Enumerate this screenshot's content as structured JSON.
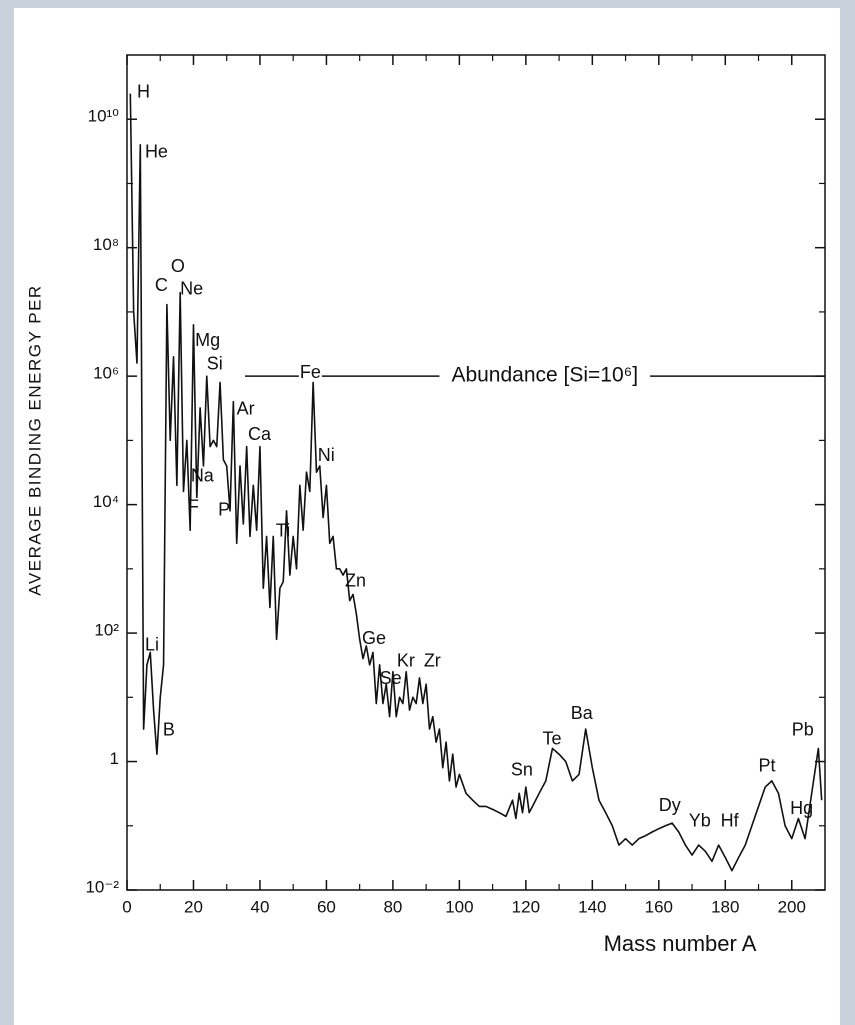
{
  "chart_data": {
    "type": "line",
    "ylabel": "AVERAGE BINDING ENERGY PER",
    "xlabel": "Mass number A",
    "ylog": true,
    "color": "#111111",
    "xlim": [
      0,
      210
    ],
    "ylim": [
      0.01,
      100000000000.0
    ],
    "xticks": [
      0,
      20,
      40,
      60,
      80,
      100,
      120,
      140,
      160,
      180,
      200
    ],
    "xticks_minor": [
      10,
      30,
      50,
      70,
      90,
      110,
      130,
      150,
      170,
      190
    ],
    "yticks": [
      {
        "value": 0.01,
        "label": "10⁻²"
      },
      1,
      {
        "value": 100,
        "label": "10²"
      },
      {
        "value": 10000,
        "label": "10⁴"
      },
      {
        "value": 1000000,
        "label": "10⁶"
      },
      {
        "value": 100000000,
        "label": "10⁸"
      },
      {
        "value": 10000000000,
        "label": "10¹⁰"
      }
    ],
    "yticks_minor": [
      0.1,
      10,
      1000,
      100000,
      10000000,
      1000000000
    ],
    "x": [
      1,
      2,
      3,
      4,
      5,
      6,
      7,
      8,
      9,
      10,
      11,
      12,
      13,
      14,
      15,
      16,
      17,
      18,
      19,
      20,
      21,
      22,
      23,
      24,
      25,
      26,
      27,
      28,
      29,
      30,
      31,
      32,
      33,
      34,
      35,
      36,
      37,
      38,
      39,
      40,
      41,
      42,
      43,
      44,
      45,
      46,
      47,
      48,
      49,
      50,
      51,
      52,
      53,
      54,
      55,
      56,
      57,
      58,
      59,
      60,
      61,
      62,
      63,
      64,
      65,
      66,
      67,
      68,
      69,
      70,
      71,
      72,
      73,
      74,
      75,
      76,
      77,
      78,
      79,
      80,
      81,
      82,
      83,
      84,
      85,
      86,
      87,
      88,
      89,
      90,
      91,
      92,
      93,
      94,
      95,
      96,
      97,
      98,
      99,
      100,
      102,
      104,
      106,
      108,
      110,
      112,
      114,
      116,
      117,
      118,
      119,
      120,
      121,
      122,
      124,
      126,
      128,
      130,
      132,
      134,
      136,
      138,
      140,
      142,
      144,
      146,
      148,
      150,
      152,
      154,
      156,
      158,
      160,
      162,
      164,
      166,
      168,
      170,
      172,
      174,
      176,
      178,
      180,
      182,
      184,
      186,
      188,
      190,
      192,
      194,
      196,
      198,
      200,
      202,
      204,
      206,
      208,
      209
    ],
    "values": [
      25000000000.0,
      10000000.0,
      1600000.0,
      4000000000.0,
      3.2,
      32,
      50,
      6.3,
      1.3,
      10,
      32,
      13000000.0,
      100000.0,
      2000000.0,
      20000.0,
      20000000.0,
      16000.0,
      100000.0,
      4000,
      6300000.0,
      13000.0,
      320000.0,
      40000.0,
      1000000.0,
      80000.0,
      100000.0,
      80000.0,
      800000.0,
      50000.0,
      40000.0,
      8000,
      400000.0,
      2500,
      40000.0,
      5000,
      80000.0,
      3200,
      20000.0,
      4000,
      80000.0,
      500,
      3200,
      250,
      3200,
      80,
      500,
      630,
      8000,
      800,
      3200,
      1000,
      20000.0,
      4000,
      32000.0,
      16000.0,
      800000.0,
      32000.0,
      40000.0,
      6300,
      20000.0,
      2500,
      3200,
      1000,
      1000,
      800,
      1000,
      320,
      400,
      200,
      80,
      40,
      63,
      32,
      50,
      8,
      32,
      8,
      16,
      5,
      25,
      5,
      10,
      8,
      25,
      6.3,
      10,
      8,
      20,
      8,
      16,
      3.2,
      5,
      2,
      3.2,
      0.8,
      2,
      0.5,
      1.3,
      0.4,
      0.63,
      0.32,
      0.25,
      0.2,
      0.2,
      0.18,
      0.16,
      0.14,
      0.25,
      0.13,
      0.32,
      0.16,
      0.4,
      0.16,
      0.2,
      0.32,
      0.5,
      1.6,
      1.3,
      1,
      0.5,
      0.63,
      3.2,
      0.8,
      0.25,
      0.16,
      0.1,
      0.05,
      0.063,
      0.05,
      0.063,
      0.07,
      0.08,
      0.09,
      0.1,
      0.11,
      0.08,
      0.05,
      0.035,
      0.05,
      0.04,
      0.028,
      0.05,
      0.032,
      0.02,
      0.032,
      0.05,
      0.1,
      0.2,
      0.4,
      0.5,
      0.32,
      0.1,
      0.063,
      0.13,
      0.063,
      0.32,
      1.6,
      0.25
    ],
    "annotations": [
      {
        "text": "H",
        "x": 3,
        "y": 26000000000.0
      },
      {
        "text": "He",
        "x": 5.4,
        "y": 3000000000.0
      },
      {
        "text": "C",
        "x": 8.4,
        "y": 25000000.0
      },
      {
        "text": "O",
        "x": 13.2,
        "y": 50000000.0
      },
      {
        "text": "Ne",
        "x": 16,
        "y": 22000000.0
      },
      {
        "text": "Mg",
        "x": 20.5,
        "y": 3500000.0
      },
      {
        "text": "Si",
        "x": 24,
        "y": 1500000.0
      },
      {
        "text": "Ar",
        "x": 33,
        "y": 300000.0
      },
      {
        "text": "Ca",
        "x": 36.4,
        "y": 120000.0
      },
      {
        "text": "Na",
        "x": 19.2,
        "y": 27000.0
      },
      {
        "text": "F",
        "x": 18.3,
        "y": 9000
      },
      {
        "text": "P",
        "x": 27.4,
        "y": 8000
      },
      {
        "text": "Fe",
        "x": 52,
        "y": 1100000.0
      },
      {
        "text": "Ni",
        "x": 57.4,
        "y": 57000.0
      },
      {
        "text": "Ti",
        "x": 44.8,
        "y": 3800
      },
      {
        "text": "Zn",
        "x": 65.6,
        "y": 630
      },
      {
        "text": "Ge",
        "x": 70.7,
        "y": 80
      },
      {
        "text": "Se",
        "x": 76,
        "y": 19
      },
      {
        "text": "Kr",
        "x": 81.2,
        "y": 36
      },
      {
        "text": "Zr",
        "x": 89.3,
        "y": 36
      },
      {
        "text": "Li",
        "x": 5.4,
        "y": 63
      },
      {
        "text": "B",
        "x": 10.8,
        "y": 3
      },
      {
        "text": "Sn",
        "x": 115.5,
        "y": 0.72
      },
      {
        "text": "Te",
        "x": 125,
        "y": 2.2
      },
      {
        "text": "Ba",
        "x": 133.5,
        "y": 5.4
      },
      {
        "text": "Dy",
        "x": 160,
        "y": 0.2
      },
      {
        "text": "Yb",
        "x": 169,
        "y": 0.115
      },
      {
        "text": "Hf",
        "x": 178.6,
        "y": 0.115
      },
      {
        "text": "Pt",
        "x": 190,
        "y": 0.83
      },
      {
        "text": "Pb",
        "x": 200,
        "y": 3
      },
      {
        "text": "Hg",
        "x": 199.5,
        "y": 0.18
      }
    ],
    "note": {
      "text": "Abundance [Si=10⁶]",
      "x": 125.7,
      "y": 1000000
    }
  }
}
